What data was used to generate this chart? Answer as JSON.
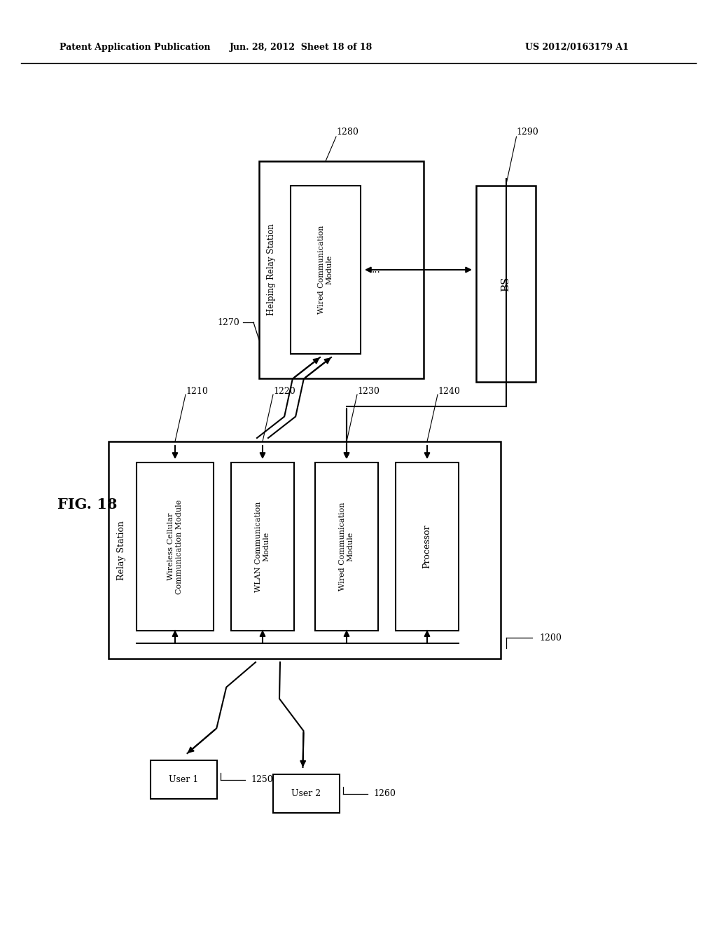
{
  "title_left": "Patent Application Publication",
  "title_mid": "Jun. 28, 2012  Sheet 18 of 18",
  "title_right": "US 2012/0163179 A1",
  "bg_color": "#ffffff",
  "line_color": "#000000"
}
